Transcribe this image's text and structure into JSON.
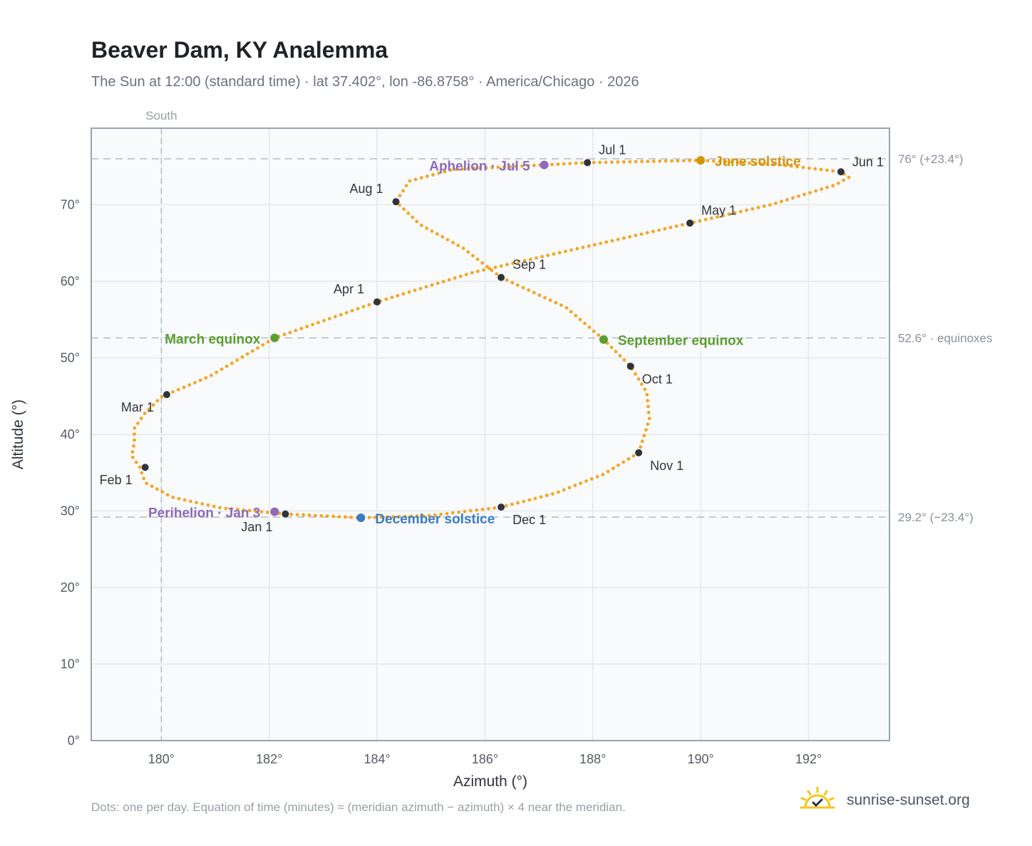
{
  "header": {
    "title": "Beaver Dam, KY Analemma",
    "subtitle": "The Sun at 12:00 (standard time) · lat 37.402°, lon -86.8758° · America/Chicago · 2026"
  },
  "footer": {
    "note": "Dots: one per day. Equation of time (minutes) ≈ (meridian azimuth − azimuth) × 4 near the meridian.",
    "brand": "sunrise-sunset.org"
  },
  "colors": {
    "curve": "#f5a623",
    "month_marker": "#2f343b",
    "equinox": "#5a9e2f",
    "june_solstice": "#d4940a",
    "december_solstice": "#3b7cc0",
    "apsis": "#8e6bb8",
    "grid": "#e5e8ec",
    "plot_bg": "#f8fafc",
    "frame": "#9aa3b0",
    "refline": "#b4bcc5"
  },
  "chart_data": {
    "type": "scatter",
    "title": "Beaver Dam, KY Analemma",
    "xlabel": "Azimuth (°)",
    "ylabel": "Altitude (°)",
    "xlim": [
      178.7,
      193.5
    ],
    "ylim": [
      0,
      80
    ],
    "x_ticks": [
      180,
      182,
      184,
      186,
      188,
      190,
      192
    ],
    "x_tick_labels": [
      "180°",
      "182°",
      "184°",
      "186°",
      "188°",
      "190°",
      "192°"
    ],
    "y_ticks": [
      0,
      10,
      20,
      30,
      40,
      50,
      60,
      70
    ],
    "y_tick_labels": [
      "0°",
      "10°",
      "20°",
      "30°",
      "40°",
      "50°",
      "60°",
      "70°"
    ],
    "grid": true,
    "meridian": {
      "azimuth": 180,
      "label": "South"
    },
    "reference_lines": [
      {
        "altitude": 76.0,
        "label": "76° (+23.4°)"
      },
      {
        "altitude": 52.6,
        "label": "52.6° · equinoxes"
      },
      {
        "altitude": 29.2,
        "label": "29.2° (−23.4°)"
      }
    ],
    "series": [
      {
        "name": "",
        "marker": "daily",
        "points": [
          [
            182.3,
            29.6
          ],
          [
            181.1,
            30.4
          ],
          [
            180.2,
            31.8
          ],
          [
            179.7,
            33.7
          ],
          [
            179.6,
            35.7
          ],
          [
            179.45,
            37.2
          ],
          [
            179.5,
            39.0
          ],
          [
            179.5,
            40.8
          ],
          [
            179.7,
            42.8
          ],
          [
            180.0,
            44.9
          ],
          [
            180.9,
            47.6
          ],
          [
            182.1,
            52.6
          ],
          [
            184.0,
            57.3
          ],
          [
            185.8,
            61.2
          ],
          [
            187.8,
            64.4
          ],
          [
            189.8,
            67.6
          ],
          [
            191.3,
            70.0
          ],
          [
            192.5,
            72.6
          ],
          [
            192.75,
            73.6
          ],
          [
            192.6,
            74.3
          ],
          [
            191.5,
            75.2
          ],
          [
            190.0,
            75.8
          ],
          [
            187.9,
            75.5
          ],
          [
            187.1,
            75.2
          ],
          [
            185.4,
            74.6
          ],
          [
            184.6,
            73.1
          ],
          [
            184.35,
            70.4
          ],
          [
            184.8,
            67.4
          ],
          [
            185.6,
            64.3
          ],
          [
            186.3,
            60.5
          ],
          [
            187.5,
            56.6
          ],
          [
            188.2,
            52.4
          ],
          [
            188.7,
            48.9
          ],
          [
            189.0,
            45.5
          ],
          [
            189.05,
            42.0
          ],
          [
            188.85,
            37.6
          ],
          [
            188.2,
            34.8
          ],
          [
            187.3,
            32.3
          ],
          [
            186.3,
            30.5
          ],
          [
            185.0,
            29.4
          ],
          [
            183.7,
            29.1
          ],
          [
            182.6,
            29.5
          ],
          [
            182.3,
            29.6
          ]
        ]
      }
    ],
    "month_markers": [
      {
        "label": "Jan 1",
        "x": 182.3,
        "y": 29.6
      },
      {
        "label": "Feb 1",
        "x": 179.7,
        "y": 35.7
      },
      {
        "label": "Mar 1",
        "x": 180.1,
        "y": 45.2
      },
      {
        "label": "Apr 1",
        "x": 184.0,
        "y": 57.3
      },
      {
        "label": "May 1",
        "x": 189.8,
        "y": 67.6
      },
      {
        "label": "Jun 1",
        "x": 192.6,
        "y": 74.3
      },
      {
        "label": "Jul 1",
        "x": 187.9,
        "y": 75.5
      },
      {
        "label": "Aug 1",
        "x": 184.35,
        "y": 70.4
      },
      {
        "label": "Sep 1",
        "x": 186.3,
        "y": 60.5
      },
      {
        "label": "Oct 1",
        "x": 188.7,
        "y": 48.9
      },
      {
        "label": "Nov 1",
        "x": 188.85,
        "y": 37.6
      },
      {
        "label": "Dec 1",
        "x": 186.3,
        "y": 30.5
      }
    ],
    "events": [
      {
        "label": "March equinox",
        "x": 182.1,
        "y": 52.6,
        "color_key": "equinox"
      },
      {
        "label": "September equinox",
        "x": 188.2,
        "y": 52.4,
        "color_key": "equinox"
      },
      {
        "label": "June solstice",
        "x": 190.0,
        "y": 75.8,
        "color_key": "june_solstice"
      },
      {
        "label": "December solstice",
        "x": 183.7,
        "y": 29.1,
        "color_key": "december_solstice"
      },
      {
        "label": "Aphelion · Jul 5",
        "x": 187.1,
        "y": 75.2,
        "color_key": "apsis"
      },
      {
        "label": "Perihelion · Jan 3",
        "x": 182.1,
        "y": 29.9,
        "color_key": "apsis"
      }
    ]
  }
}
